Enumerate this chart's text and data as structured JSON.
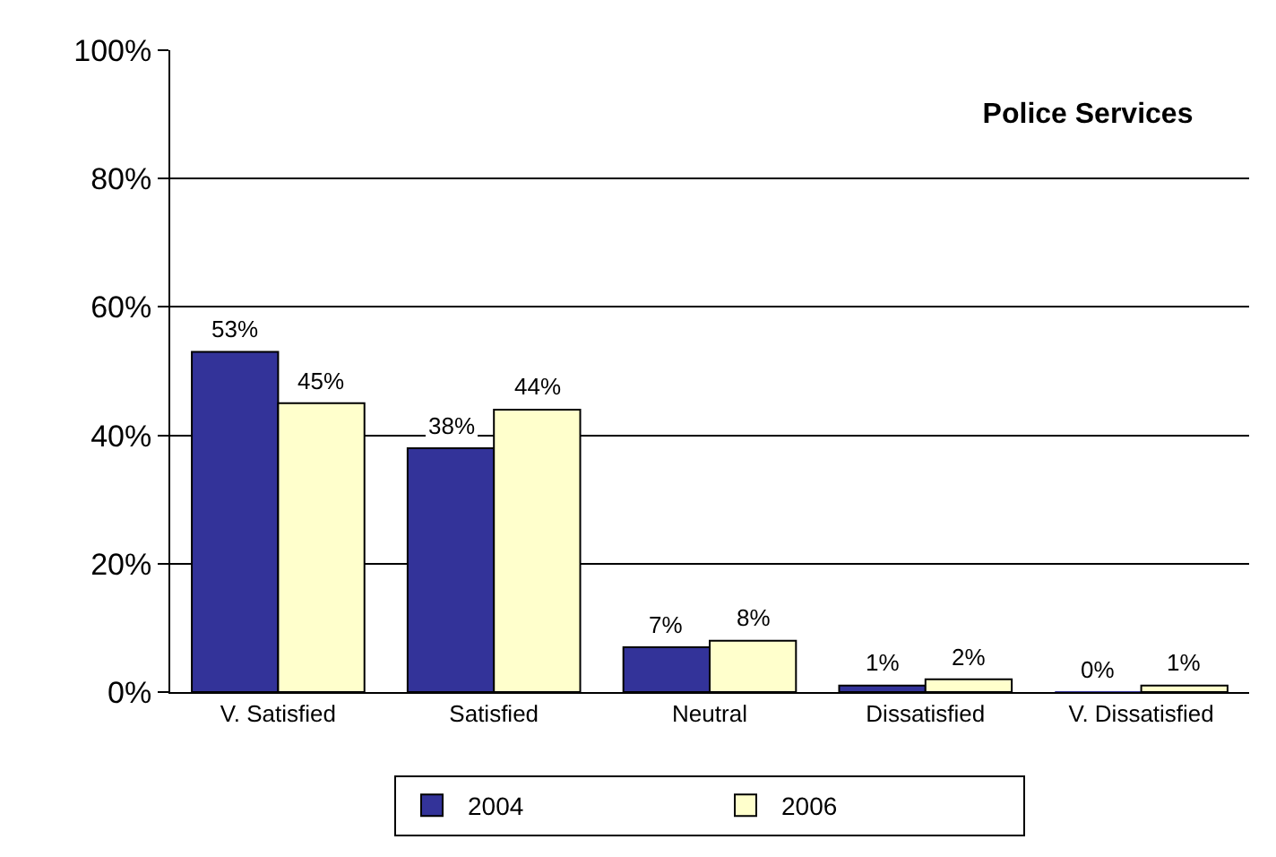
{
  "chart_data": {
    "type": "bar",
    "title": "Police Services",
    "categories": [
      "V. Satisfied",
      "Satisfied",
      "Neutral",
      "Dissatisfied",
      "V. Dissatisfied"
    ],
    "series": [
      {
        "name": "2004",
        "color": "#333399",
        "values": [
          53,
          38,
          7,
          1,
          0
        ],
        "value_labels": [
          "53%",
          "38%",
          "7%",
          "1%",
          "0%"
        ]
      },
      {
        "name": "2006",
        "color": "#ffffcc",
        "values": [
          45,
          44,
          8,
          2,
          1
        ],
        "value_labels": [
          "45%",
          "44%",
          "8%",
          "2%",
          "1%"
        ]
      }
    ],
    "ylim": [
      0,
      100
    ],
    "yticks": [
      {
        "value": 0,
        "label": "0%"
      },
      {
        "value": 20,
        "label": "20%"
      },
      {
        "value": 40,
        "label": "40%"
      },
      {
        "value": 60,
        "label": "60%"
      },
      {
        "value": 80,
        "label": "80%"
      },
      {
        "value": 100,
        "label": "100%"
      }
    ],
    "grid": "y",
    "legend": "bottom"
  }
}
